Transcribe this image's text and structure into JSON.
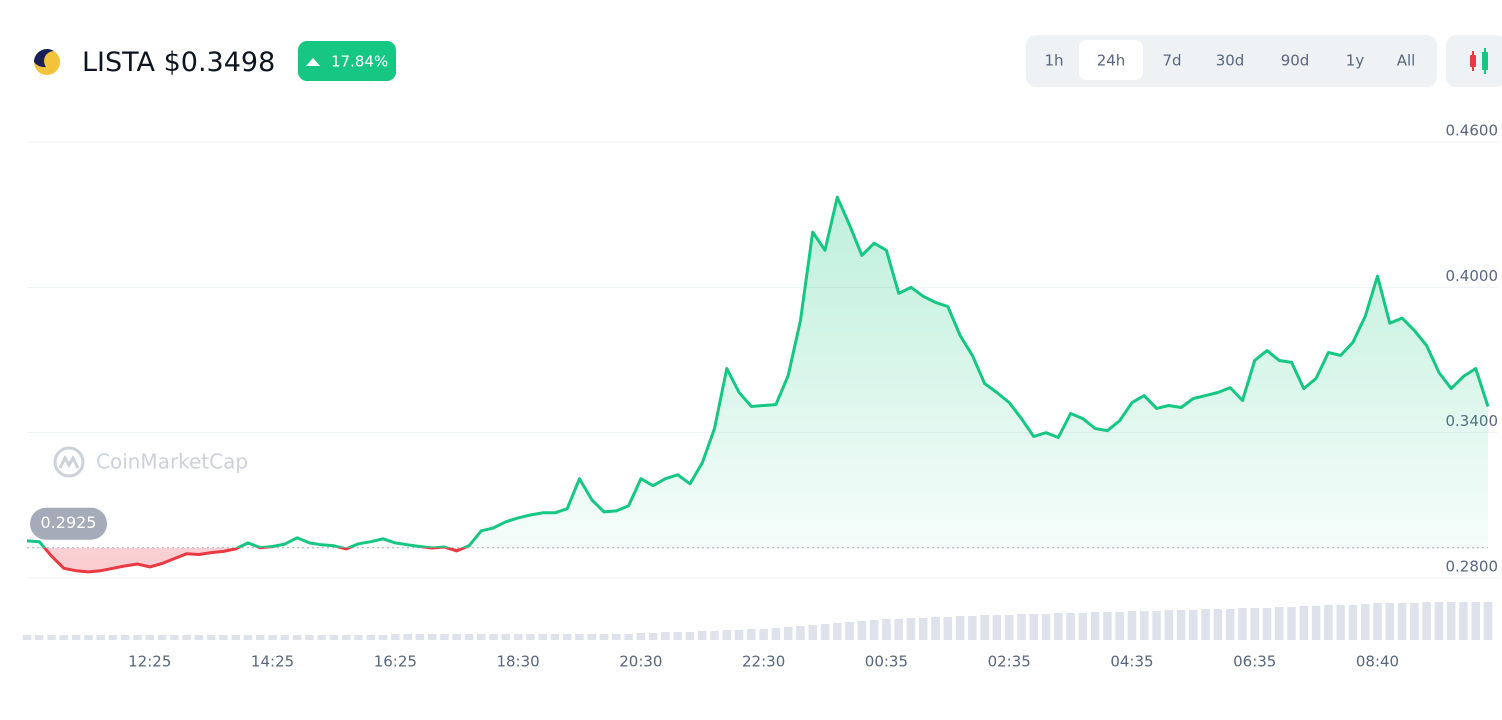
{
  "header": {
    "symbol": "LISTA",
    "price": "$0.3498",
    "change": "17.84%",
    "watermark": "CoinMarketCap"
  },
  "time_ranges": [
    "1h",
    "24h",
    "7d",
    "30d",
    "90d",
    "1y",
    "All"
  ],
  "selected_range": "24h",
  "chart_data": {
    "type": "line",
    "categories": [
      null,
      null,
      null,
      null,
      null,
      null,
      null,
      null,
      null,
      null,
      "12:25",
      null,
      null,
      null,
      null,
      null,
      null,
      null,
      null,
      null,
      "14:25",
      null,
      null,
      null,
      null,
      null,
      null,
      null,
      null,
      null,
      "16:25",
      null,
      null,
      null,
      null,
      null,
      null,
      null,
      null,
      null,
      "18:30",
      null,
      null,
      null,
      null,
      null,
      null,
      null,
      null,
      null,
      "20:30",
      null,
      null,
      null,
      null,
      null,
      null,
      null,
      null,
      null,
      "22:30",
      null,
      null,
      null,
      null,
      null,
      null,
      null,
      null,
      null,
      "00:35",
      null,
      null,
      null,
      null,
      null,
      null,
      null,
      null,
      null,
      "02:35",
      null,
      null,
      null,
      null,
      null,
      null,
      null,
      null,
      null,
      "04:35",
      null,
      null,
      null,
      null,
      null,
      null,
      null,
      null,
      null,
      "06:35",
      null,
      null,
      null,
      null,
      null,
      null,
      null,
      null,
      null,
      "08:40",
      null,
      null,
      null,
      null,
      null,
      null,
      null,
      null,
      null
    ],
    "values": [
      0.2953,
      0.295,
      0.289,
      0.284,
      0.283,
      0.2825,
      0.283,
      0.284,
      0.285,
      0.2858,
      0.2846,
      0.286,
      0.288,
      0.29,
      0.2897,
      0.2905,
      0.291,
      0.292,
      0.2945,
      0.2925,
      0.293,
      0.294,
      0.2966,
      0.2945,
      0.2937,
      0.2933,
      0.292,
      0.2941,
      0.295,
      0.2962,
      0.2945,
      0.2937,
      0.293,
      0.2924,
      0.2928,
      0.2912,
      0.2933,
      0.2995,
      0.3007,
      0.3032,
      0.3048,
      0.306,
      0.3069,
      0.3069,
      0.3086,
      0.321,
      0.3123,
      0.3073,
      0.3077,
      0.3098,
      0.321,
      0.3181,
      0.321,
      0.3226,
      0.3189,
      0.3276,
      0.3417,
      0.3665,
      0.3566,
      0.3508,
      0.3512,
      0.3516,
      0.3636,
      0.3864,
      0.4228,
      0.4153,
      0.4372,
      0.4257,
      0.4132,
      0.4182,
      0.4153,
      0.3975,
      0.4,
      0.3963,
      0.3938,
      0.3921,
      0.3801,
      0.3719,
      0.3603,
      0.3566,
      0.3524,
      0.3458,
      0.3384,
      0.34,
      0.338,
      0.3479,
      0.3458,
      0.3417,
      0.3408,
      0.345,
      0.3524,
      0.3553,
      0.35,
      0.3512,
      0.3504,
      0.3541,
      0.3553,
      0.3566,
      0.3586,
      0.3533,
      0.3698,
      0.3739,
      0.3698,
      0.369,
      0.3582,
      0.3624,
      0.3731,
      0.3719,
      0.3773,
      0.388,
      0.4046,
      0.3852,
      0.3873,
      0.3822,
      0.376,
      0.3649,
      0.3582,
      0.3632,
      0.3665,
      0.3508
    ],
    "volume": [
      5,
      5,
      5,
      5,
      5,
      5,
      5,
      5,
      5,
      5,
      5,
      5,
      5,
      5,
      5,
      5,
      5,
      5,
      5,
      5,
      5,
      5,
      5,
      5,
      5,
      5,
      5,
      5,
      5,
      5,
      6,
      6,
      6,
      6,
      6,
      6,
      6,
      6,
      6,
      6,
      6,
      6,
      6,
      6,
      6,
      6,
      6,
      6,
      6,
      6,
      7,
      7,
      8,
      8,
      8,
      9,
      9,
      10,
      10,
      11,
      11,
      12,
      13,
      14,
      15,
      16,
      17,
      18,
      19,
      20,
      21,
      21,
      22,
      22,
      23,
      23,
      24,
      24,
      25,
      25,
      25,
      26,
      26,
      26,
      27,
      27,
      27,
      28,
      28,
      28,
      29,
      29,
      29,
      30,
      30,
      30,
      31,
      31,
      31,
      32,
      32,
      32,
      33,
      33,
      34,
      34,
      35,
      35,
      35,
      36,
      37,
      37,
      37,
      37,
      38,
      38,
      38,
      38,
      38,
      38
    ],
    "baseline": 0.2925,
    "up_color": "#16c784",
    "down_color": "#ea3943",
    "ylim": [
      0.2745,
      0.4645
    ],
    "yticks": [
      {
        "value": 0.28,
        "label": "0.2800"
      },
      {
        "value": 0.34,
        "label": "0.3400"
      },
      {
        "value": 0.4,
        "label": "0.4000"
      },
      {
        "value": 0.46,
        "label": "0.4600"
      }
    ],
    "grid": true
  }
}
